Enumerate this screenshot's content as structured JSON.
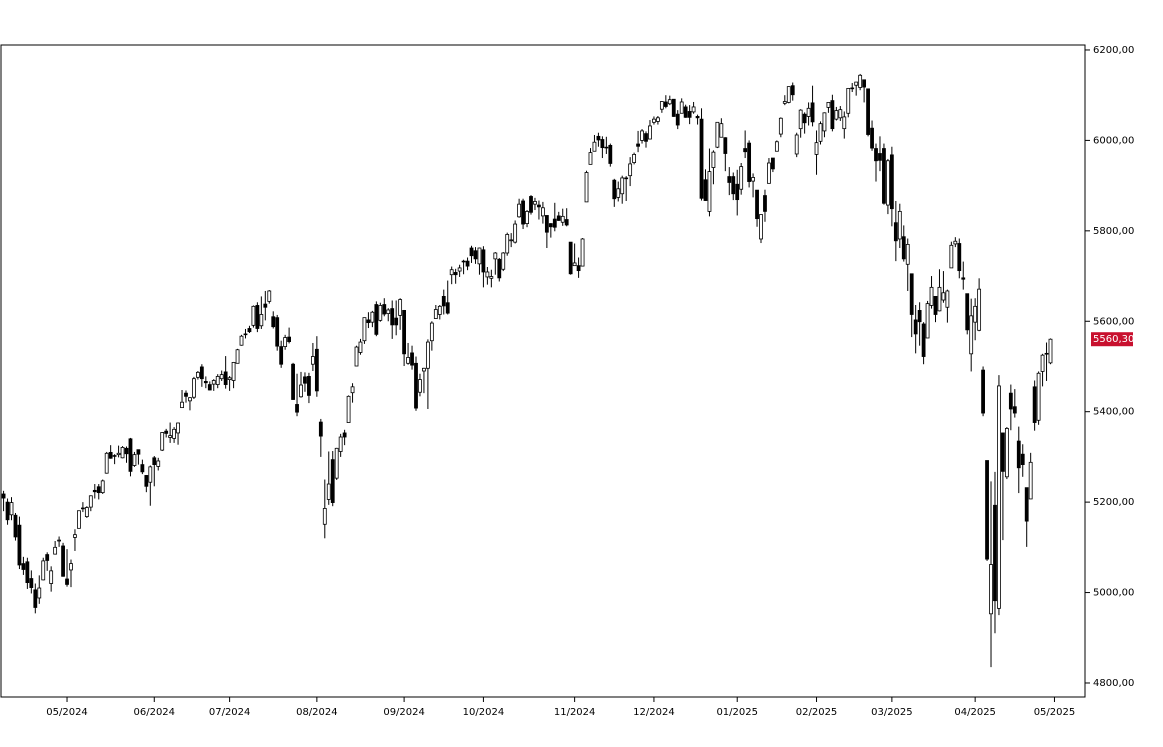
{
  "chart_data": {
    "type": "candlestick",
    "color_up": "#ffffff",
    "color_down": "#000000",
    "outline": "#000000",
    "xlim": [
      -0.65,
      272.7
    ],
    "xticks": [
      {
        "value": 16,
        "label": "05/2024"
      },
      {
        "value": 38,
        "label": "06/2024"
      },
      {
        "value": 57,
        "label": "07/2024"
      },
      {
        "value": 79,
        "label": "08/2024"
      },
      {
        "value": 101,
        "label": "09/2024"
      },
      {
        "value": 121,
        "label": "10/2024"
      },
      {
        "value": 144,
        "label": "11/2024"
      },
      {
        "value": 164,
        "label": "12/2024"
      },
      {
        "value": 185,
        "label": "01/2025"
      },
      {
        "value": 205,
        "label": "02/2025"
      },
      {
        "value": 224,
        "label": "03/2025"
      },
      {
        "value": 245,
        "label": "04/2025"
      },
      {
        "value": 265,
        "label": "05/2025"
      }
    ],
    "ylim": [
      4769,
      6211
    ],
    "yticks": [
      {
        "value": 4800,
        "label": "4800,00"
      },
      {
        "value": 5000,
        "label": "5000,00"
      },
      {
        "value": 5200,
        "label": "5200,00"
      },
      {
        "value": 5400,
        "label": "5400,00"
      },
      {
        "value": 5600,
        "label": "5600,00"
      },
      {
        "value": 5800,
        "label": "5800,00"
      },
      {
        "value": 6000,
        "label": "6000,00"
      },
      {
        "value": 6200,
        "label": "6200,00"
      }
    ],
    "last_price": {
      "value": 5560.3,
      "label": "5560,30",
      "color": "#c8102e"
    },
    "open": [
      5218,
      5200,
      5172,
      5171,
      5149,
      5064,
      5068,
      5031,
      5006,
      4988,
      5028,
      5084,
      5020,
      5085,
      5114,
      5103,
      5030,
      5050,
      5122,
      5142,
      5187,
      5168,
      5189,
      5226,
      5234,
      5221,
      5264,
      5310,
      5303,
      5305,
      5298,
      5319,
      5340,
      5281,
      5316,
      5283,
      5259,
      5244,
      5298,
      5279,
      5315,
      5357,
      5343,
      5341,
      5353,
      5409,
      5441,
      5424,
      5432,
      5476,
      5499,
      5467,
      5460,
      5461,
      5460,
      5473,
      5488,
      5471,
      5469,
      5507,
      5547,
      5572,
      5584,
      5591,
      5635,
      5590,
      5638,
      5644,
      5610,
      5608,
      5544,
      5544,
      5565,
      5505,
      5416,
      5433,
      5477,
      5478,
      5505,
      5538,
      5377,
      5151,
      5206,
      5294,
      5253,
      5312,
      5353,
      5376,
      5442,
      5501,
      5531,
      5557,
      5603,
      5598,
      5637,
      5602,
      5637,
      5617,
      5628,
      5607,
      5613,
      5624,
      5507,
      5530,
      5507,
      5443,
      5490,
      5496,
      5557,
      5606,
      5615,
      5655,
      5641,
      5703,
      5708,
      5711,
      5733,
      5733,
      5762,
      5756,
      5727,
      5758,
      5698,
      5695,
      5738,
      5737,
      5715,
      5751,
      5778,
      5775,
      5831,
      5866,
      5816,
      5876,
      5859,
      5857,
      5833,
      5834,
      5816,
      5826,
      5833,
      5819,
      5825,
      5775,
      5723,
      5723,
      5722,
      5864,
      5947,
      5976,
      6009,
      6002,
      5985,
      5989,
      5912,
      5874,
      5882,
      5917,
      5922,
      5951,
      5992,
      6000,
      6015,
      6003,
      6040,
      6042,
      6069,
      6085,
      6081,
      6091,
      6058,
      6060,
      6074,
      6064,
      6063,
      6053,
      6047,
      5913,
      5843,
      5940,
      5985,
      6007,
      6006,
      5920,
      5920,
      5903,
      5892,
      5982,
      5994,
      5910,
      5890,
      5782,
      5878,
      5905,
      5961,
      5976,
      6014,
      6082,
      6084,
      6121,
      5970,
      6026,
      6058,
      6053,
      6083,
      5969,
      5998,
      6021,
      6073,
      6088,
      6047,
      6050,
      6026,
      6060,
      6116,
      6122,
      6117,
      6134,
      6114,
      6027,
      5982,
      5971,
      5982,
      5857,
      5968,
      5818,
      5782,
      5787,
      5726,
      5705,
      5603,
      5624,
      5594,
      5563,
      5635,
      5655,
      5623,
      5647,
      5631,
      5718,
      5771,
      5772,
      5696,
      5661,
      5528,
      5598,
      5580,
      5492,
      5292,
      4953,
      5193,
      4965,
      5353,
      5256,
      5441,
      5411,
      5335,
      5306,
      5232,
      5207,
      5455,
      5381,
      5489,
      5529,
      5508
    ],
    "high": [
      5225,
      5208,
      5211,
      5176,
      5168,
      5079,
      5077,
      5049,
      5020,
      5038,
      5077,
      5089,
      5058,
      5114,
      5124,
      5110,
      5096,
      5073,
      5140,
      5181,
      5200,
      5191,
      5215,
      5240,
      5240,
      5250,
      5311,
      5326,
      5306,
      5325,
      5324,
      5323,
      5342,
      5311,
      5316,
      5294,
      5260,
      5281,
      5302,
      5298,
      5355,
      5362,
      5376,
      5366,
      5376,
      5448,
      5447,
      5432,
      5477,
      5490,
      5505,
      5478,
      5467,
      5472,
      5483,
      5491,
      5523,
      5479,
      5510,
      5539,
      5570,
      5583,
      5590,
      5635,
      5642,
      5655,
      5667,
      5669,
      5622,
      5614,
      5557,
      5570,
      5586,
      5508,
      5484,
      5488,
      5487,
      5486,
      5552,
      5567,
      5384,
      5250,
      5312,
      5313,
      5320,
      5351,
      5360,
      5436,
      5463,
      5546,
      5561,
      5608,
      5620,
      5623,
      5644,
      5641,
      5651,
      5629,
      5646,
      5646,
      5651,
      5625,
      5552,
      5546,
      5522,
      5484,
      5497,
      5560,
      5600,
      5636,
      5636,
      5670,
      5690,
      5721,
      5716,
      5725,
      5736,
      5741,
      5767,
      5764,
      5763,
      5766,
      5720,
      5714,
      5753,
      5740,
      5753,
      5796,
      5795,
      5823,
      5871,
      5871,
      5846,
      5879,
      5873,
      5867,
      5864,
      5834,
      5817,
      5862,
      5842,
      5849,
      5850,
      5775,
      5772,
      5741,
      5784,
      5933,
      5983,
      6012,
      6017,
      6009,
      6008,
      5993,
      5915,
      5909,
      5922,
      5921,
      5963,
      5973,
      6021,
      6025,
      6020,
      6045,
      6053,
      6054,
      6087,
      6100,
      6099,
      6091,
      6067,
      6093,
      6079,
      6078,
      6085,
      6057,
      6071,
      5936,
      5982,
      5978,
      6040,
      6049,
      6007,
      5941,
      5929,
      5935,
      5950,
      6022,
      6000,
      5927,
      5890,
      5836,
      5891,
      5961,
      5961,
      6000,
      6051,
      6100,
      6119,
      6128,
      6017,
      6069,
      6062,
      6084,
      6121,
      6022,
      6042,
      6062,
      6084,
      6101,
      6074,
      6076,
      6064,
      6116,
      6127,
      6129,
      6147,
      6134,
      6114,
      6044,
      5993,
      6009,
      5993,
      5959,
      5986,
      5866,
      5860,
      5812,
      5783,
      5705,
      5636,
      5642,
      5598,
      5645,
      5700,
      5655,
      5715,
      5711,
      5670,
      5776,
      5786,
      5783,
      5732,
      5661,
      5650,
      5651,
      5695,
      5500,
      5292,
      5246,
      5267,
      5481,
      5353,
      5366,
      5460,
      5450,
      5367,
      5328,
      5232,
      5309,
      5469,
      5489,
      5528,
      5553,
      5562
    ],
    "low": [
      5180,
      5150,
      5160,
      5115,
      5052,
      5039,
      5008,
      4998,
      4954,
      4975,
      5027,
      5048,
      5002,
      5084,
      5101,
      5035,
      5013,
      5012,
      5092,
      5142,
      5178,
      5165,
      5180,
      5208,
      5206,
      5218,
      5263,
      5296,
      5284,
      5299,
      5297,
      5287,
      5257,
      5278,
      5283,
      5262,
      5222,
      5192,
      5235,
      5270,
      5313,
      5343,
      5331,
      5331,
      5327,
      5409,
      5420,
      5403,
      5428,
      5471,
      5455,
      5452,
      5447,
      5446,
      5452,
      5468,
      5451,
      5446,
      5452,
      5507,
      5546,
      5562,
      5574,
      5586,
      5576,
      5583,
      5602,
      5639,
      5584,
      5535,
      5497,
      5537,
      5551,
      5426,
      5390,
      5431,
      5444,
      5419,
      5490,
      5433,
      5300,
      5120,
      5194,
      5191,
      5249,
      5300,
      5326,
      5376,
      5420,
      5501,
      5526,
      5550,
      5585,
      5587,
      5567,
      5599,
      5611,
      5600,
      5561,
      5569,
      5581,
      5501,
      5504,
      5493,
      5402,
      5434,
      5441,
      5406,
      5535,
      5605,
      5604,
      5615,
      5615,
      5682,
      5683,
      5698,
      5704,
      5713,
      5729,
      5727,
      5703,
      5675,
      5681,
      5675,
      5703,
      5688,
      5711,
      5745,
      5764,
      5772,
      5829,
      5804,
      5808,
      5836,
      5846,
      5825,
      5816,
      5762,
      5785,
      5799,
      5822,
      5811,
      5810,
      5703,
      5723,
      5696,
      5722,
      5864,
      5947,
      5976,
      5986,
      5961,
      5970,
      5942,
      5853,
      5865,
      5860,
      5866,
      5899,
      5947,
      5974,
      5993,
      5984,
      6003,
      6035,
      6035,
      6061,
      6071,
      6078,
      6052,
      6025,
      6060,
      6050,
      6036,
      6059,
      6035,
      5867,
      5866,
      5832,
      5903,
      5983,
      6007,
      5932,
      5879,
      5868,
      5834,
      5880,
      5961,
      5896,
      5874,
      5809,
      5773,
      5820,
      5905,
      5930,
      5976,
      6007,
      6078,
      6082,
      6088,
      5963,
      6006,
      6015,
      6033,
      6031,
      5924,
      5991,
      6007,
      6061,
      6020,
      6044,
      6043,
      6004,
      6051,
      6107,
      6099,
      6111,
      6084,
      6009,
      5977,
      5909,
      5932,
      5858,
      5837,
      5810,
      5733,
      5762,
      5732,
      5667,
      5565,
      5529,
      5546,
      5505,
      5563,
      5628,
      5598,
      5622,
      5641,
      5597,
      5718,
      5764,
      5695,
      5670,
      5571,
      5489,
      5558,
      5578,
      5390,
      5070,
      4835,
      4910,
      4950,
      5116,
      5251,
      5359,
      5387,
      5220,
      5256,
      5101,
      5207,
      5358,
      5371,
      5456,
      5468,
      5505
    ],
    "close": [
      5209,
      5161,
      5199,
      5123,
      5061,
      5051,
      5022,
      5011,
      4967,
      5010,
      5070,
      5071,
      5048,
      5100,
      5116,
      5036,
      5018,
      5064,
      5128,
      5181,
      5187,
      5188,
      5214,
      5223,
      5221,
      5247,
      5308,
      5297,
      5303,
      5308,
      5321,
      5307,
      5268,
      5305,
      5306,
      5267,
      5235,
      5278,
      5283,
      5291,
      5354,
      5352,
      5347,
      5361,
      5375,
      5421,
      5434,
      5431,
      5473,
      5487,
      5473,
      5464,
      5448,
      5469,
      5478,
      5482,
      5460,
      5475,
      5509,
      5537,
      5567,
      5572,
      5577,
      5633,
      5584,
      5615,
      5631,
      5667,
      5588,
      5545,
      5505,
      5564,
      5555,
      5427,
      5399,
      5459,
      5463,
      5436,
      5522,
      5446,
      5346,
      5186,
      5240,
      5199,
      5319,
      5344,
      5344,
      5434,
      5455,
      5543,
      5554,
      5608,
      5597,
      5620,
      5571,
      5635,
      5616,
      5625,
      5592,
      5592,
      5648,
      5528,
      5520,
      5503,
      5408,
      5471,
      5496,
      5554,
      5596,
      5626,
      5633,
      5634,
      5618,
      5714,
      5703,
      5718,
      5732,
      5722,
      5745,
      5738,
      5762,
      5709,
      5709,
      5699,
      5751,
      5696,
      5751,
      5792,
      5780,
      5815,
      5859,
      5815,
      5843,
      5841,
      5865,
      5853,
      5851,
      5797,
      5809,
      5808,
      5823,
      5832,
      5813,
      5705,
      5729,
      5712,
      5782,
      5929,
      5973,
      5996,
      6001,
      5984,
      5985,
      5949,
      5871,
      5893,
      5917,
      5917,
      5948,
      5969,
      5987,
      6021,
      5998,
      6032,
      6047,
      6050,
      6086,
      6075,
      6090,
      6053,
      6034,
      6085,
      6051,
      6051,
      6074,
      6050,
      5872,
      5867,
      5931,
      5974,
      6040,
      6037,
      5971,
      5907,
      5882,
      5869,
      5942,
      5975,
      5909,
      5918,
      5827,
      5836,
      5843,
      5950,
      5937,
      5997,
      6049,
      6086,
      6119,
      6101,
      6012,
      6067,
      6039,
      6071,
      6041,
      5995,
      6037,
      6061,
      6084,
      6026,
      6066,
      6068,
      6052,
      6115,
      6115,
      6129,
      6144,
      6118,
      6013,
      5983,
      5955,
      5956,
      5861,
      5955,
      5849,
      5778,
      5843,
      5738,
      5770,
      5615,
      5572,
      5599,
      5522,
      5639,
      5675,
      5615,
      5675,
      5663,
      5667,
      5768,
      5777,
      5712,
      5693,
      5581,
      5612,
      5633,
      5671,
      5397,
      5074,
      5062,
      4982,
      5457,
      5268,
      5363,
      5406,
      5397,
      5276,
      5283,
      5158,
      5288,
      5376,
      5485,
      5525,
      5529,
      5560.3
    ]
  }
}
